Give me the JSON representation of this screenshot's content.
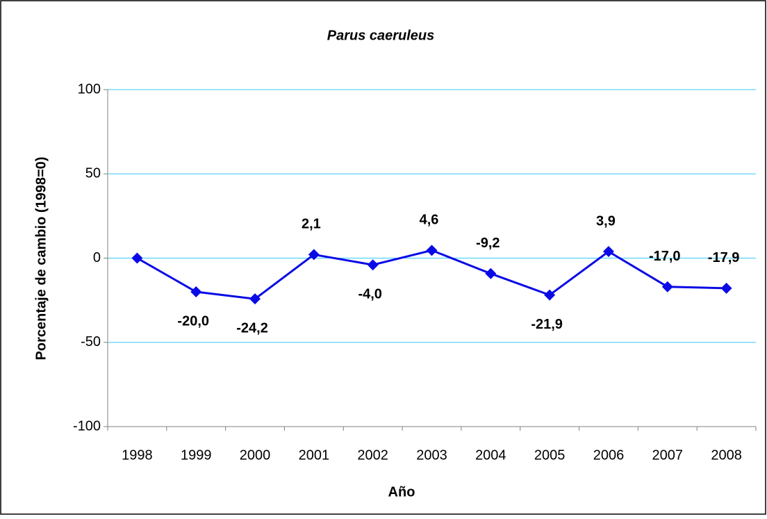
{
  "chart_data": {
    "type": "line",
    "title": "Parus caeruleus",
    "xlabel": "Año",
    "ylabel": "Porcentaje de cambio (1998=0)",
    "categories": [
      "1998",
      "1999",
      "2000",
      "2001",
      "2002",
      "2003",
      "2004",
      "2005",
      "2006",
      "2007",
      "2008"
    ],
    "series": [
      {
        "name": "Parus caeruleus",
        "color": "#0a0ae6",
        "values": [
          0,
          -20.0,
          -24.2,
          2.1,
          -4.0,
          4.6,
          -9.2,
          -21.9,
          3.9,
          -17.0,
          -17.9
        ],
        "value_labels": [
          null,
          "-20,0",
          "-24,2",
          "2,1",
          "-4,0",
          "4,6",
          "-9,2",
          "-21,9",
          "3,9",
          "-17,0",
          "-17,9"
        ]
      }
    ],
    "ylim": [
      -100,
      100
    ],
    "yticks": [
      -100,
      -50,
      0,
      50,
      100
    ],
    "grid": true,
    "grid_color": "#33ccff"
  }
}
